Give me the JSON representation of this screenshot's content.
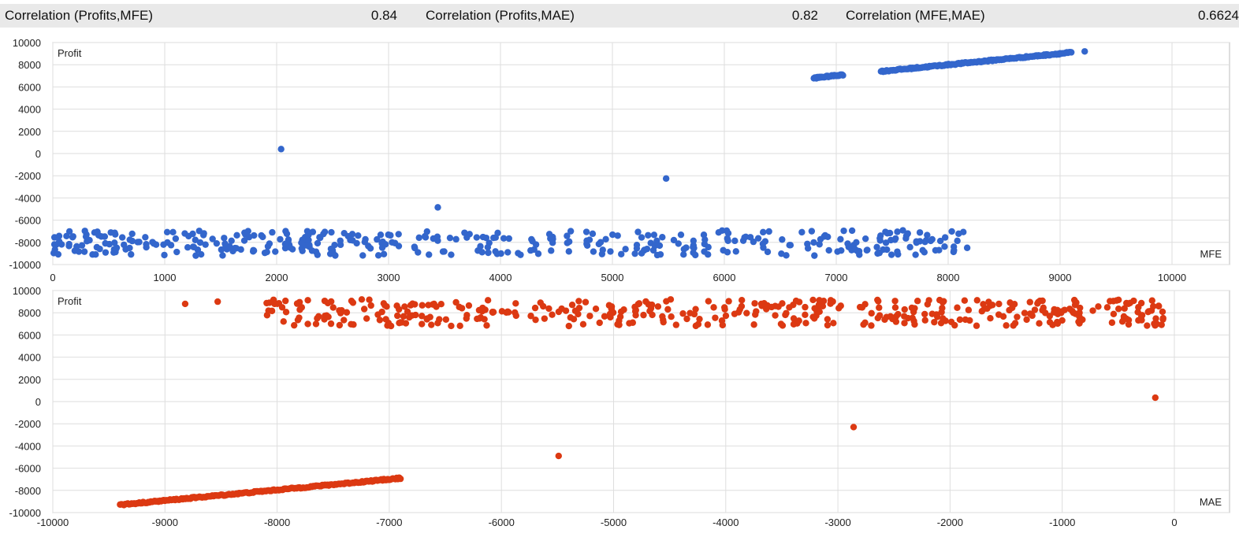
{
  "stats": [
    {
      "label": "Correlation (Profits,MFE)",
      "value": "0.84"
    },
    {
      "label": "Correlation (Profits,MAE)",
      "value": "0.82"
    },
    {
      "label": "Correlation (MFE,MAE)",
      "value": "0.6624"
    }
  ],
  "colors": {
    "mfe": "#3366cc",
    "mae": "#dc3912"
  },
  "chart_data": [
    {
      "type": "scatter",
      "ylabel": "Profit",
      "xlabel": "MFE",
      "xlim": [
        0,
        10000
      ],
      "ylim": [
        -10000,
        10000
      ],
      "xticks": [
        0,
        1000,
        2000,
        3000,
        4000,
        5000,
        6000,
        7000,
        8000,
        9000,
        10000
      ],
      "yticks": [
        10000,
        8000,
        6000,
        4000,
        2000,
        0,
        -2000,
        -4000,
        -6000,
        -8000,
        -10000
      ],
      "grid": true,
      "outliers": [
        [
          2040,
          400
        ],
        [
          3440,
          -4850
        ],
        [
          5480,
          -2250
        ]
      ],
      "bands": [
        {
          "x_range": [
            0,
            8200
          ],
          "y_range": [
            -9200,
            -6900
          ],
          "count": 400,
          "distribution": "denser at low x, sparser above 6000"
        },
        {
          "x_range": [
            6800,
            7060
          ],
          "y_range": [
            6800,
            7100
          ],
          "count": 35,
          "distribution": "linear"
        },
        {
          "x_range": [
            7400,
            9100
          ],
          "y_range": [
            7400,
            9100
          ],
          "count": 170,
          "distribution": "linear"
        }
      ],
      "extra_points": [
        [
          9220,
          9200
        ]
      ]
    },
    {
      "type": "scatter",
      "ylabel": "Profit",
      "xlabel": "MAE",
      "xlim": [
        -10000,
        0
      ],
      "ylim": [
        -10000,
        10000
      ],
      "xticks": [
        -10000,
        -9000,
        -8000,
        -7000,
        -6000,
        -5000,
        -4000,
        -3000,
        -2000,
        -1000,
        0
      ],
      "yticks": [
        10000,
        8000,
        6000,
        4000,
        2000,
        0,
        -2000,
        -4000,
        -6000,
        -8000,
        -10000
      ],
      "grid": true,
      "outliers": [
        [
          -8820,
          8800
        ],
        [
          -8530,
          9000
        ],
        [
          -5490,
          -4900
        ],
        [
          -2860,
          -2300
        ],
        [
          -170,
          350
        ]
      ],
      "bands": [
        {
          "x_range": [
            -8100,
            -100
          ],
          "y_range": [
            6800,
            9200
          ],
          "count": 420,
          "distribution": "denser toward x=0"
        },
        {
          "x_range": [
            -9400,
            -6900
          ],
          "y_range": [
            -9300,
            -6900
          ],
          "count": 220,
          "distribution": "linear"
        }
      ],
      "extra_points": []
    }
  ]
}
